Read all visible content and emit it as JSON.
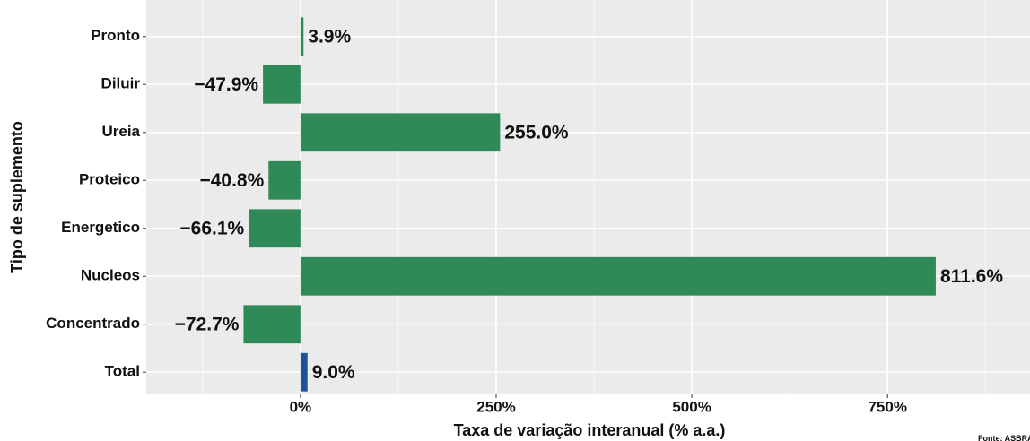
{
  "chart_data": {
    "type": "bar",
    "orientation": "horizontal",
    "x_label": "Taxa de variação interanual (% a.a.)",
    "y_label": "Tipo de suplemento",
    "caption": "Fonte: ASBRAM",
    "categories": [
      "Pronto",
      "Diluir",
      "Ureia",
      "Proteico",
      "Energetico",
      "Nucleos",
      "Concentrado",
      "Total"
    ],
    "values": [
      3.9,
      -47.9,
      255.0,
      -40.8,
      -66.1,
      811.6,
      -72.7,
      9.0
    ],
    "value_labels": [
      "3.9%",
      "−47.9%",
      "255.0%",
      "−40.8%",
      "−66.1%",
      "811.6%",
      "−72.7%",
      "9.0%"
    ],
    "colors": [
      "#2e8b57",
      "#2e8b57",
      "#2e8b57",
      "#2e8b57",
      "#2e8b57",
      "#2e8b57",
      "#2e8b57",
      "#1f5294"
    ],
    "xlim": [
      -197,
      932
    ],
    "xticks": [
      {
        "value": 0,
        "label": "0%"
      },
      {
        "value": 250,
        "label": "250%"
      },
      {
        "value": 500,
        "label": "500%"
      },
      {
        "value": 750,
        "label": "750%"
      }
    ],
    "minor_xticks": [
      -125,
      125,
      375,
      625,
      875
    ],
    "grid": true,
    "legend": false
  }
}
